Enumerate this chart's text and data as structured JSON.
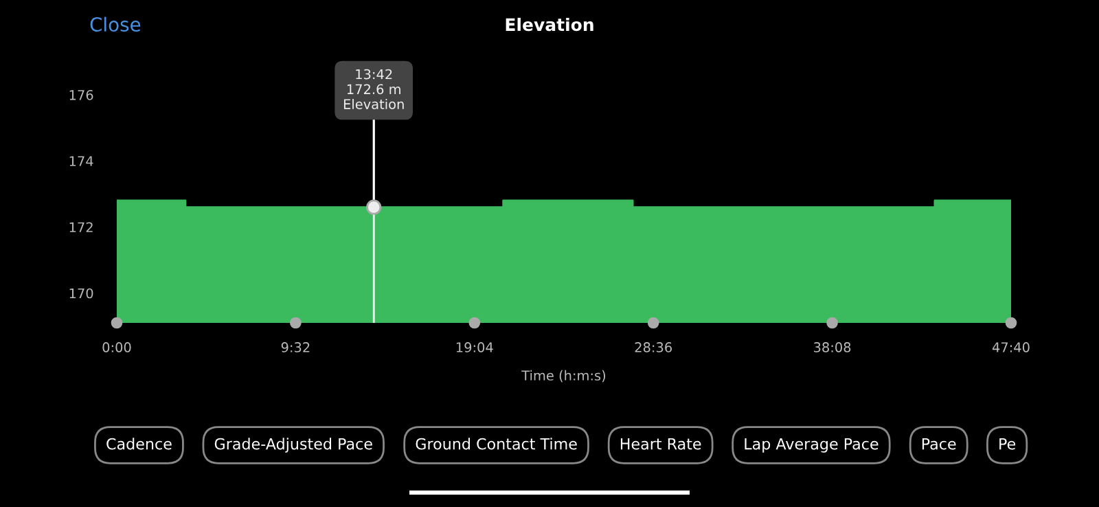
{
  "chart_data": {
    "type": "area",
    "title": "Elevation",
    "xlabel": "Time (h:m:s)",
    "x": [
      0,
      3.66,
      3.66,
      20.6,
      20.6,
      27.5,
      27.5,
      43.6,
      43.6,
      47.667
    ],
    "series": [
      {
        "color": "#3cbb5e",
        "values": [
          172.8,
          172.8,
          172.6,
          172.6,
          172.8,
          172.8,
          172.6,
          172.6,
          172.8,
          172.8
        ]
      }
    ],
    "xlim": [
      0,
      47.667
    ],
    "ylim": [
      169.1,
      176
    ],
    "xticks": [
      {
        "value": 0,
        "label": "0:00"
      },
      {
        "value": 9.533,
        "label": "9:32"
      },
      {
        "value": 19.067,
        "label": "19:04"
      },
      {
        "value": 28.6,
        "label": "28:36"
      },
      {
        "value": 38.133,
        "label": "38:08"
      },
      {
        "value": 47.667,
        "label": "47:40"
      }
    ],
    "yticks": [
      170,
      172,
      174,
      176
    ],
    "grid": false,
    "ref_lines": [
      {
        "axis": "x",
        "value": 13.7,
        "color": "#ffffff"
      }
    ],
    "annotations": [
      {
        "text": "13:42\n172.6 m\nElevation",
        "x": 13.7,
        "y": 172.6
      },
      "Close",
      "Cadence",
      "Grade-Adjusted Pace",
      "Ground Contact Time",
      "Heart Rate",
      "Lap Average Pace",
      "Pace",
      "Pe"
    ]
  }
}
